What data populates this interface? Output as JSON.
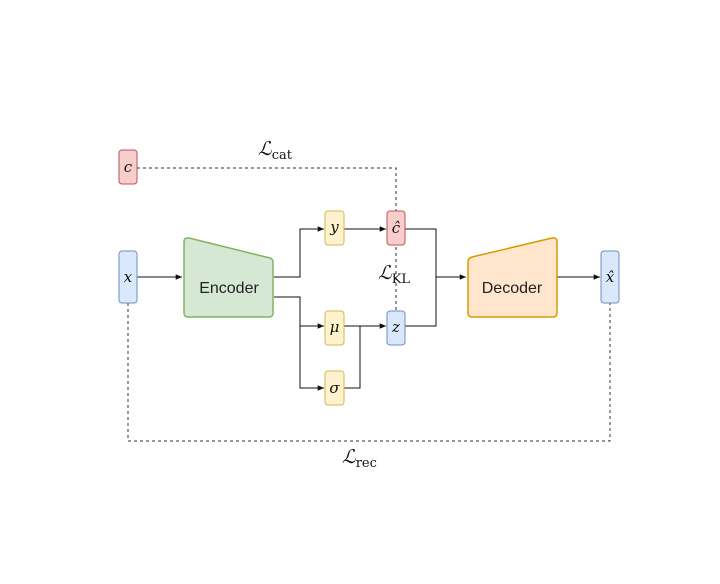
{
  "nodes": {
    "c": {
      "label": "c",
      "fill": "#f8cecc",
      "stroke": "#b85450"
    },
    "x": {
      "label": "x",
      "fill": "#dae8fc",
      "stroke": "#6c8ebf"
    },
    "y": {
      "label": "y",
      "fill": "#fff2cc",
      "stroke": "#d6b656"
    },
    "c_hat": {
      "label": "ĉ",
      "fill": "#f8cecc",
      "stroke": "#b85450"
    },
    "mu": {
      "label": "μ",
      "fill": "#fff2cc",
      "stroke": "#d6b656"
    },
    "z": {
      "label": "z",
      "fill": "#dae8fc",
      "stroke": "#6c8ebf"
    },
    "sigma": {
      "label": "σ",
      "fill": "#fff2cc",
      "stroke": "#d6b656"
    },
    "x_hat": {
      "label": "x̂",
      "fill": "#dae8fc",
      "stroke": "#6c8ebf"
    }
  },
  "blocks": {
    "encoder": {
      "label": "Encoder",
      "fill": "#d5e8d4",
      "stroke": "#82b366"
    },
    "decoder": {
      "label": "Decoder",
      "fill": "#ffe6cc",
      "stroke": "#d79b00"
    }
  },
  "losses": {
    "cat": {
      "symbol": "ℒ",
      "sub": "cat"
    },
    "kl": {
      "symbol": "ℒ",
      "sub": "KL"
    },
    "rec": {
      "symbol": "ℒ",
      "sub": "rec"
    }
  }
}
